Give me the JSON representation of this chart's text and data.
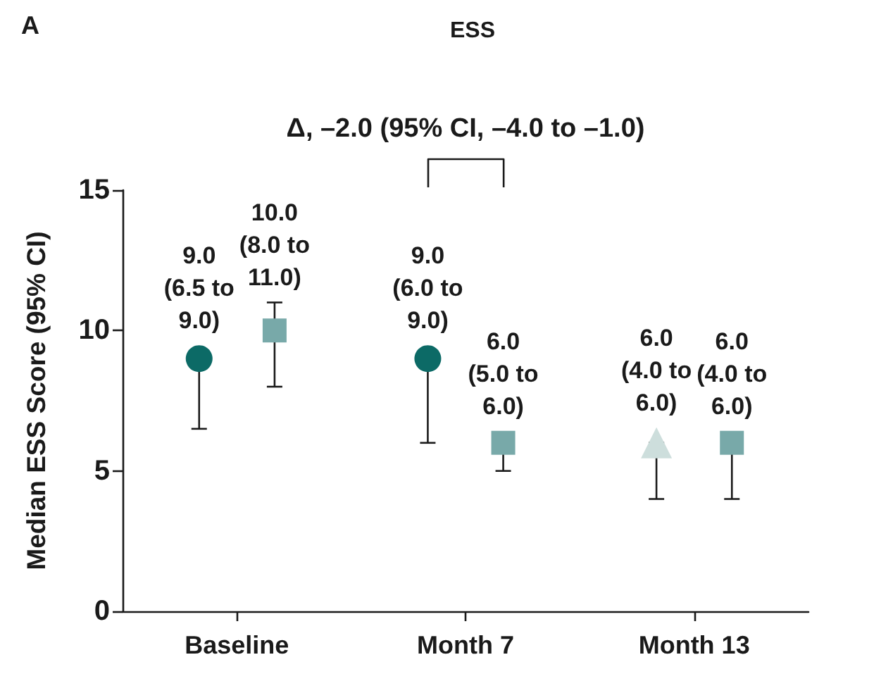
{
  "chart_data": {
    "type": "scatter",
    "title": "ESS",
    "ylabel": "Median ESS Score (95% CI)",
    "annotations": [
      "A",
      "Δ, –2.0 (95% CI, –4.0 to –1.0)"
    ],
    "categories": [
      "Baseline",
      "Month 7",
      "Month 13"
    ],
    "series": [
      {
        "color": "#0c6a66",
        "marker": "circle",
        "values": [
          9.0,
          9.0,
          null
        ],
        "errors": [
          [
            6.5,
            9.0
          ],
          [
            6.0,
            9.0
          ],
          null
        ],
        "value_labels": [
          "9.0\n(6.5 to\n9.0)",
          "9.0\n(6.0 to\n9.0)",
          null
        ]
      },
      {
        "color": "#cddedc",
        "marker": "triangle",
        "values": [
          null,
          null,
          6.0
        ],
        "errors": [
          null,
          null,
          [
            4.0,
            6.0
          ]
        ],
        "value_labels": [
          null,
          null,
          "6.0\n(4.0 to\n6.0)"
        ]
      },
      {
        "color": "#78a9a9",
        "marker": "square",
        "values": [
          10.0,
          6.0,
          6.0
        ],
        "errors": [
          [
            8.0,
            11.0
          ],
          [
            5.0,
            6.0
          ],
          [
            4.0,
            6.0
          ]
        ],
        "value_labels": [
          "10.0\n(8.0 to\n11.0)",
          "6.0\n(5.0 to\n6.0)",
          "6.0\n(4.0 to\n6.0)"
        ]
      }
    ],
    "ylim": [
      0,
      15
    ],
    "yticks": [
      0,
      5,
      10,
      15
    ]
  }
}
